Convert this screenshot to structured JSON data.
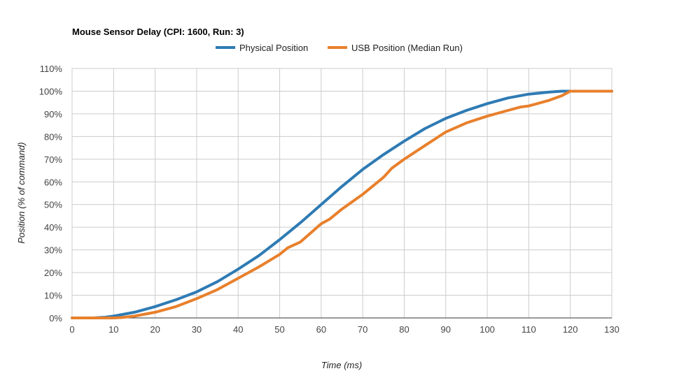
{
  "chart_data": {
    "type": "line",
    "title": "Mouse Sensor Delay (CPI: 1600, Run: 3)",
    "xlabel": "Time (ms)",
    "ylabel": "Position (% of command)",
    "xlim": [
      0,
      130
    ],
    "ylim": [
      0,
      110
    ],
    "x_ticks": [
      0,
      10,
      20,
      30,
      40,
      50,
      60,
      70,
      80,
      90,
      100,
      110,
      120,
      130
    ],
    "y_ticks": [
      0,
      10,
      20,
      30,
      40,
      50,
      60,
      70,
      80,
      90,
      100,
      110
    ],
    "y_tick_format": "%",
    "grid": true,
    "legend_position": "top",
    "series": [
      {
        "name": "Physical Position",
        "color": "#2e7bb4",
        "x": [
          0,
          5,
          8,
          10,
          15,
          20,
          25,
          30,
          35,
          40,
          45,
          50,
          55,
          60,
          65,
          70,
          75,
          80,
          85,
          90,
          95,
          100,
          105,
          110,
          115,
          118,
          120,
          125,
          130
        ],
        "y": [
          0,
          0,
          0.3,
          0.8,
          2.5,
          5,
          8,
          11.5,
          16,
          21.5,
          27.5,
          34.5,
          42,
          50,
          58,
          65.5,
          72,
          78,
          83.5,
          88,
          91.5,
          94.5,
          97,
          98.7,
          99.6,
          100,
          100,
          100,
          100
        ]
      },
      {
        "name": "USB Position (Median Run)",
        "color": "#e8802c",
        "x": [
          0,
          10,
          12,
          15,
          20,
          25,
          30,
          35,
          40,
          45,
          50,
          52,
          55,
          60,
          62,
          65,
          70,
          75,
          77,
          80,
          85,
          90,
          95,
          100,
          105,
          108,
          110,
          115,
          118,
          120,
          125,
          130
        ],
        "y": [
          0,
          0,
          0.2,
          0.8,
          2.5,
          5,
          8.5,
          12.5,
          17.5,
          22.5,
          28,
          31,
          33.5,
          41.5,
          43.5,
          48,
          54.5,
          62,
          66,
          70,
          76,
          82,
          86,
          89,
          91.5,
          93,
          93.5,
          96,
          98,
          100,
          100,
          100
        ]
      }
    ]
  }
}
